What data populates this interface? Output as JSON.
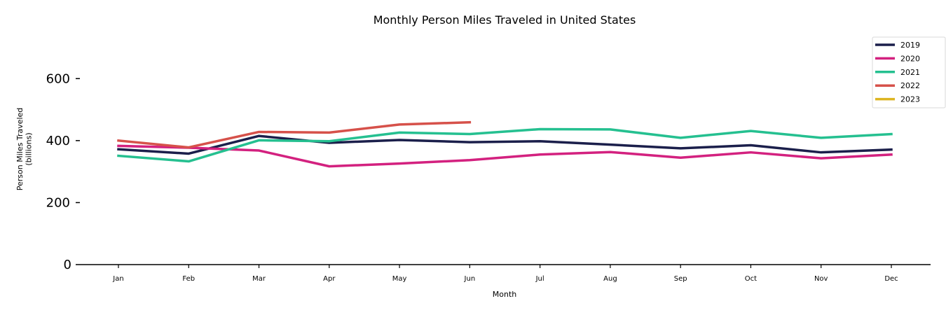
{
  "chart_data": {
    "type": "line",
    "title": "Monthly Person Miles Traveled in United States",
    "xlabel": "Month",
    "ylabel": "Person Miles Traveled\n(billions)",
    "categories": [
      "Jan",
      "Feb",
      "Mar",
      "Apr",
      "May",
      "Jun",
      "Jul",
      "Aug",
      "Sep",
      "Oct",
      "Nov",
      "Dec"
    ],
    "ylim": [
      0,
      700
    ],
    "yticks": [
      0,
      200,
      400,
      600
    ],
    "grid": false,
    "legend_position": "top-right",
    "series": [
      {
        "name": "2019",
        "color": "#1b1f4b",
        "values": [
          372,
          358,
          415,
          393,
          402,
          395,
          398,
          387,
          375,
          385,
          362,
          371
        ]
      },
      {
        "name": "2020",
        "color": "#d3217f",
        "values": [
          383,
          377,
          368,
          317,
          326,
          337,
          355,
          363,
          345,
          362,
          343,
          355
        ]
      },
      {
        "name": "2021",
        "color": "#25c090",
        "values": [
          351,
          333,
          401,
          398,
          426,
          421,
          437,
          436,
          409,
          431,
          409,
          421
        ]
      },
      {
        "name": "2022",
        "color": "#d6514a",
        "values": [
          400,
          378,
          428,
          426,
          452,
          459,
          null,
          null,
          null,
          null,
          null,
          null
        ]
      },
      {
        "name": "2023",
        "color": "#ddb521",
        "values": [
          null,
          null,
          null,
          null,
          null,
          null,
          null,
          null,
          null,
          null,
          null,
          null
        ]
      }
    ]
  }
}
